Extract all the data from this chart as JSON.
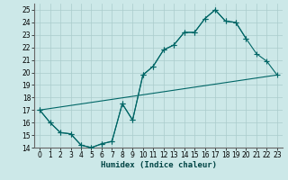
{
  "xlabel": "Humidex (Indice chaleur)",
  "bg_color": "#cce8e8",
  "grid_color": "#aacccc",
  "line_color": "#006666",
  "xlim": [
    -0.5,
    23.5
  ],
  "ylim": [
    14,
    25.5
  ],
  "yticks": [
    14,
    15,
    16,
    17,
    18,
    19,
    20,
    21,
    22,
    23,
    24,
    25
  ],
  "xticks": [
    0,
    1,
    2,
    3,
    4,
    5,
    6,
    7,
    8,
    9,
    10,
    11,
    12,
    13,
    14,
    15,
    16,
    17,
    18,
    19,
    20,
    21,
    22,
    23
  ],
  "line1_x": [
    0,
    1,
    2,
    3,
    4,
    5,
    6,
    7,
    8,
    9,
    10,
    11,
    12,
    13,
    14,
    15,
    16,
    17,
    18,
    19,
    20,
    21,
    22,
    23
  ],
  "line1_y": [
    17.0,
    16.0,
    15.2,
    15.1,
    14.2,
    14.0,
    14.3,
    14.5,
    17.5,
    16.2,
    19.8,
    20.5,
    21.8,
    22.2,
    23.2,
    23.2,
    24.3,
    25.0,
    24.1,
    24.0,
    22.7,
    21.5,
    20.9,
    19.8
  ],
  "line2_x": [
    0,
    1,
    2,
    3,
    4,
    5,
    6,
    7,
    8,
    9,
    10,
    11,
    12,
    13,
    14,
    15,
    16,
    17,
    18,
    19,
    20
  ],
  "line2_y": [
    17.0,
    16.0,
    15.2,
    15.1,
    14.2,
    14.0,
    14.3,
    14.5,
    17.5,
    16.2,
    19.8,
    20.5,
    21.8,
    22.2,
    23.2,
    23.2,
    24.3,
    25.0,
    24.1,
    24.0,
    22.7
  ],
  "line3_x": [
    0,
    23
  ],
  "line3_y": [
    17.0,
    19.8
  ]
}
